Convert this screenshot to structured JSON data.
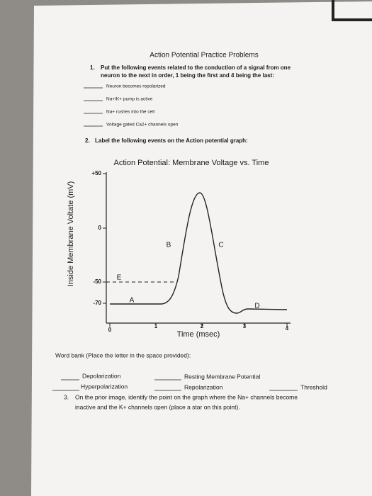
{
  "title": "Action Potential Practice Problems",
  "q1": {
    "number": "1.",
    "text_lines": [
      "Put the following events related to the conduction of a signal from one",
      "neuron to the next in order, 1 being the first and 4 being the last:"
    ],
    "items": [
      "Neuron becomes repolarized",
      "Na+/K+ pump is active",
      "Na+ rushes into the cell",
      "Voltage gated Ca2+ channels open"
    ]
  },
  "q2": {
    "number": "2.",
    "text": "Label the following events on the Action potential graph:"
  },
  "graph": {
    "title": "Action Potential: Membrane Voltage vs. Time",
    "y_label": "Inside Membrane Voltate (mV)",
    "x_label": "Time (msec)",
    "y_ticks": [
      "+50",
      "0",
      "-50",
      "-70"
    ],
    "x_ticks": [
      "0",
      "1",
      "2",
      "3",
      "4"
    ],
    "point_labels": [
      "A",
      "B",
      "C",
      "D",
      "E"
    ]
  },
  "word_bank": {
    "heading": "Word bank (Place the letter in the space provided):",
    "terms": [
      "Depolarization",
      "Resting Membrane Potential",
      "Hyperpolarization",
      "Repolarization",
      "Threshold"
    ]
  },
  "q3": {
    "number": "3.",
    "text_lines": [
      "On the prior image, identify the point on the graph where the Na+ channels become",
      "inactive and the K+ channels open (place a star on this point)."
    ]
  }
}
